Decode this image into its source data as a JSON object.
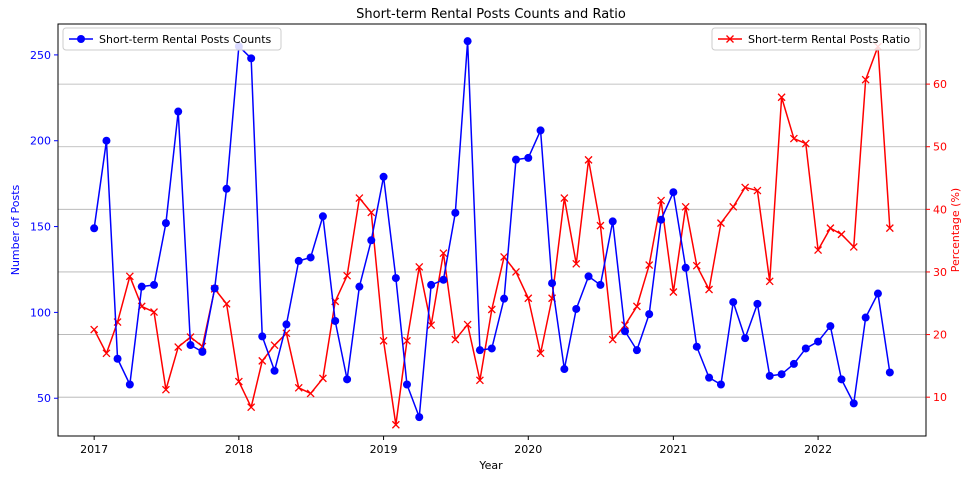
{
  "chart_data": {
    "type": "line",
    "title": "Short-term Rental Posts Counts and Ratio",
    "xlabel": "Year",
    "ylabel_left": "Number of Posts",
    "ylabel_right": "Percentage (%)",
    "x_ticks": [
      "2017",
      "2018",
      "2019",
      "2020",
      "2021",
      "2022"
    ],
    "y_left_ticks": [
      50,
      100,
      150,
      200,
      250
    ],
    "y_right_ticks": [
      10,
      20,
      30,
      40,
      50,
      60
    ],
    "y_left_lim": [
      28,
      268
    ],
    "y_right_lim": [
      3.8,
      69.6
    ],
    "grid": "horizontal lines",
    "x_start": "2017-01",
    "series": [
      {
        "name": "Short-term Rental Posts Counts",
        "axis": "left",
        "color": "#0000ff",
        "marker": "circle",
        "legend_position": "top-left",
        "values": [
          149,
          200,
          73,
          58,
          115,
          116,
          152,
          217,
          81,
          77,
          114,
          172,
          255,
          248,
          86,
          66,
          93,
          130,
          132,
          156,
          95,
          61,
          115,
          142,
          179,
          120,
          58,
          39,
          116,
          119,
          158,
          258,
          78,
          79,
          108,
          189,
          190,
          206,
          117,
          67,
          102,
          121,
          116,
          153,
          89,
          78,
          99,
          154,
          170,
          126,
          80,
          62,
          58,
          106,
          85,
          105,
          63,
          64,
          70,
          79,
          83,
          92,
          61,
          47,
          97,
          111,
          65
        ]
      },
      {
        "name": "Short-term Rental Posts Ratio",
        "axis": "right",
        "color": "#ff0000",
        "marker": "x",
        "legend_position": "top-right",
        "values": [
          20.8,
          17,
          22,
          29.3,
          24.5,
          23.6,
          11.2,
          18,
          19.6,
          18.1,
          27.3,
          24.9,
          12.5,
          8.4,
          15.8,
          18.3,
          20.2,
          11.5,
          10.6,
          13,
          25.3,
          29.4,
          41.8,
          39.5,
          19,
          5.6,
          19,
          30.8,
          21.5,
          33,
          19.2,
          21.6,
          12.7,
          24,
          32.4,
          30,
          25.8,
          17,
          25.8,
          41.8,
          31.3,
          47.9,
          37.4,
          19.2,
          21.5,
          24.5,
          31.1,
          41.4,
          26.8,
          40.4,
          31,
          27.2,
          37.8,
          40.4,
          43.5,
          43,
          28.5,
          57.9,
          51.3,
          50.5,
          33.5,
          37,
          36,
          34,
          60.7,
          66,
          37
        ]
      }
    ]
  }
}
